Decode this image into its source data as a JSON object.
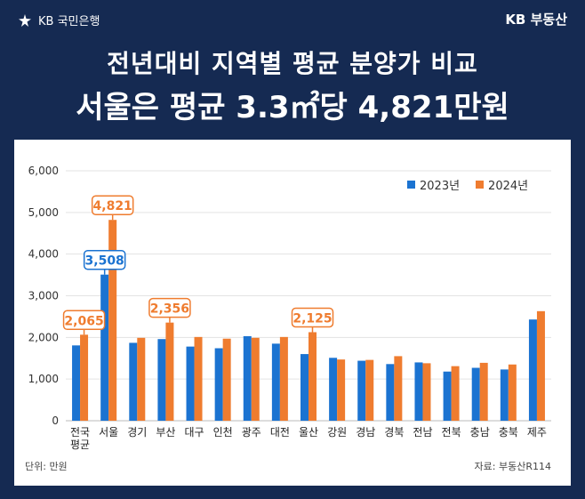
{
  "header": {
    "bank": "KB 국민은행",
    "brand": "KB 부동산",
    "title": "전년대비 지역별 평균 분양가 비교",
    "headline": "서울은 평균 3.3㎡당 4,821만원"
  },
  "footer": {
    "unit": "단위: 만원",
    "source": "자료: 부동산R114"
  },
  "colors": {
    "background": "#152a52",
    "series_2023": "#1b73d1",
    "series_2024": "#ef7c2f",
    "callout_2023": "#1b73d1",
    "callout_2024": "#ef7c2f"
  },
  "chart_data": {
    "type": "bar",
    "categories": [
      "전국 평균",
      "서울",
      "경기",
      "부산",
      "대구",
      "인천",
      "광주",
      "대전",
      "울산",
      "강원",
      "경남",
      "경북",
      "전남",
      "전북",
      "충남",
      "충북",
      "제주"
    ],
    "category_lines": [
      [
        "전국",
        "평균"
      ],
      [
        "서울"
      ],
      [
        "경기"
      ],
      [
        "부산"
      ],
      [
        "대구"
      ],
      [
        "인천"
      ],
      [
        "광주"
      ],
      [
        "대전"
      ],
      [
        "울산"
      ],
      [
        "강원"
      ],
      [
        "경남"
      ],
      [
        "경북"
      ],
      [
        "전남"
      ],
      [
        "전북"
      ],
      [
        "충남"
      ],
      [
        "충북"
      ],
      [
        "제주"
      ]
    ],
    "series": [
      {
        "name": "2023년",
        "values": [
          1808,
          3508,
          1870,
          1960,
          1780,
          1740,
          2030,
          1850,
          1600,
          1510,
          1440,
          1360,
          1400,
          1180,
          1270,
          1230,
          2430
        ]
      },
      {
        "name": "2024년",
        "values": [
          2065,
          4821,
          1990,
          2356,
          2010,
          1970,
          1990,
          2010,
          2125,
          1470,
          1460,
          1550,
          1380,
          1310,
          1390,
          1350,
          2630
        ]
      }
    ],
    "callouts": [
      {
        "series": 1,
        "index": 0,
        "label": "2,065"
      },
      {
        "series": 0,
        "index": 1,
        "label": "3,508"
      },
      {
        "series": 1,
        "index": 1,
        "label": "4,821"
      },
      {
        "series": 1,
        "index": 3,
        "label": "2,356"
      },
      {
        "series": 1,
        "index": 8,
        "label": "2,125"
      }
    ],
    "ylim": [
      0,
      6000
    ],
    "yticks": [
      0,
      1000,
      2000,
      3000,
      4000,
      5000,
      6000
    ],
    "ytick_labels": [
      "0",
      "1,000",
      "2,000",
      "3,000",
      "4,000",
      "5,000",
      "6,000"
    ],
    "grid": true,
    "legend_position": "top-right"
  }
}
